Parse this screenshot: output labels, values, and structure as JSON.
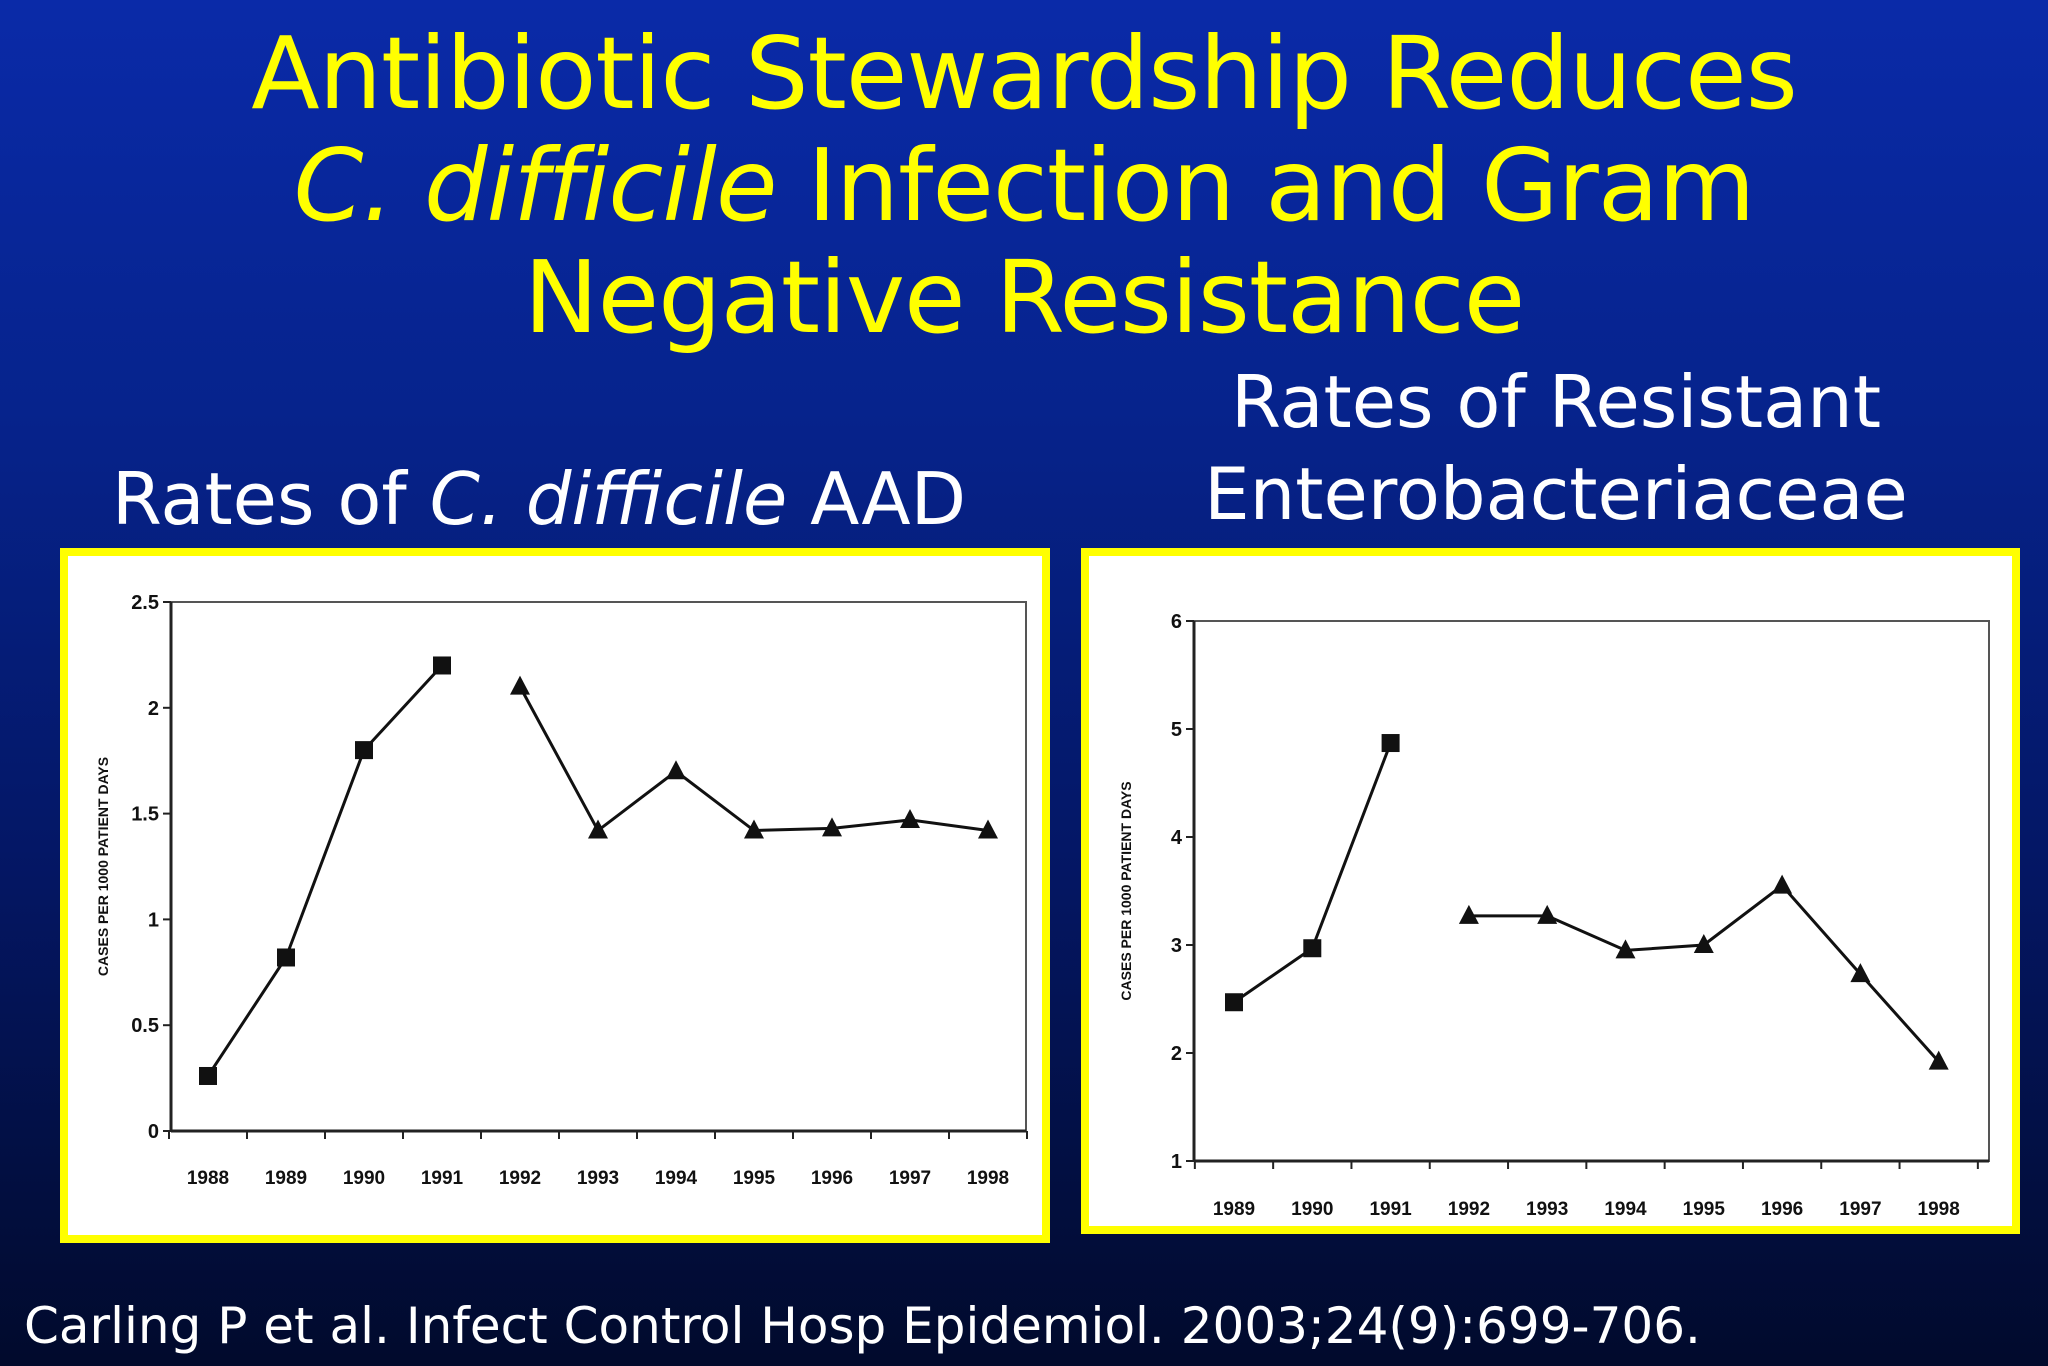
{
  "slide": {
    "title_line1": "Antibiotic Stewardship Reduces",
    "title_line2_italic": "C. difficile",
    "title_line2_rest": " Infection and Gram",
    "title_line3": "Negative Resistance",
    "citation": "Carling P et al. Infect Control Hosp Epidemiol. 2003;24(9):699-706."
  },
  "panels": {
    "left": {
      "title_pre": "Rates of ",
      "title_italic": "C. difficile",
      "title_post": " AAD"
    },
    "right": {
      "title_line1": "Rates of Resistant",
      "title_line2": "Enterobacteriaceae"
    }
  },
  "colors": {
    "background_top": "#0a2aa8",
    "background_bottom": "#010a2c",
    "title": "#ffff00",
    "frame": "#ffff00",
    "text": "#ffffff",
    "series": "#111111"
  },
  "chart_data": [
    {
      "type": "line",
      "title": "",
      "xlabel": "",
      "ylabel": "CASES PER 1000 PATIENT DAYS",
      "ylim": [
        0,
        2.5
      ],
      "yticks": [
        "0",
        "0.5",
        "1",
        "1.5",
        "2",
        "2.5"
      ],
      "categories": [
        "1988",
        "1989",
        "1990",
        "1991",
        "1992",
        "1993",
        "1994",
        "1995",
        "1996",
        "1997",
        "1998"
      ],
      "grid": false,
      "series": [
        {
          "marker": "square",
          "x": [
            "1988",
            "1989",
            "1990",
            "1991"
          ],
          "values": [
            0.26,
            0.82,
            1.8,
            2.2
          ]
        },
        {
          "marker": "triangle",
          "x": [
            "1992",
            "1993",
            "1994",
            "1995",
            "1996",
            "1997",
            "1998"
          ],
          "values": [
            2.1,
            1.42,
            1.7,
            1.42,
            1.43,
            1.47,
            1.42
          ]
        }
      ]
    },
    {
      "type": "line",
      "title": "",
      "xlabel": "",
      "ylabel": "CASES PER 1000 PATIENT DAYS",
      "ylim": [
        1,
        6
      ],
      "yticks": [
        "1",
        "2",
        "3",
        "4",
        "5",
        "6"
      ],
      "categories": [
        "1989",
        "1990",
        "1991",
        "1992",
        "1993",
        "1994",
        "1995",
        "1996",
        "1997",
        "1998"
      ],
      "grid": false,
      "series": [
        {
          "marker": "square",
          "x": [
            "1989",
            "1990",
            "1991"
          ],
          "values": [
            2.47,
            2.97,
            4.87
          ]
        },
        {
          "marker": "triangle",
          "x": [
            "1992",
            "1993",
            "1994",
            "1995",
            "1996",
            "1997",
            "1998"
          ],
          "values": [
            3.27,
            3.27,
            2.95,
            3.0,
            3.55,
            2.73,
            1.92
          ]
        }
      ]
    }
  ]
}
